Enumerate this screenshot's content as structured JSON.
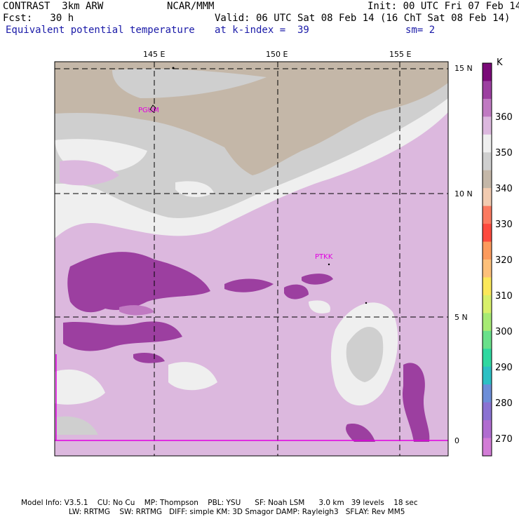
{
  "header": {
    "model": "CONTRAST  3km ARW",
    "center": "NCAR/MMM",
    "init": "Init: 00 UTC Fri 07 Feb 14",
    "fcst": "Fcst:   30 h",
    "valid": "Valid: 06 UTC Sat 08 Feb 14 (16 ChT Sat 08 Feb 14)",
    "field": "Equivalent potential temperature",
    "level": "at k-index =  39",
    "smooth": "sm= 2"
  },
  "map": {
    "lon_labels": [
      "145 E",
      "150 E",
      "155 E"
    ],
    "lat_labels": [
      "15 N",
      "10 N",
      "5 N",
      "0"
    ],
    "stations": [
      "PGUM",
      "PTKK"
    ]
  },
  "colorbar": {
    "unit": "K",
    "tick_labels": [
      "360",
      "350",
      "340",
      "330",
      "320",
      "310",
      "300",
      "290",
      "280",
      "270"
    ],
    "colors": [
      "#7a0a78",
      "#9c3fa0",
      "#c07ac2",
      "#dcb8de",
      "#efefef",
      "#cfcfcf",
      "#c4b7a8",
      "#f2cbb0",
      "#fb7a60",
      "#fd4a3e",
      "#fc9a5c",
      "#fdc07a",
      "#fbe85a",
      "#d8f06a",
      "#a6ea74",
      "#69e08a",
      "#2fd8a0",
      "#2cc0c4",
      "#6c8ed8",
      "#8a72d2",
      "#b06cd0",
      "#d27cd6"
    ]
  },
  "footer": {
    "line1": "Model Info: V3.5.1    CU: No Cu    MP: Thompson    PBL: YSU      SF: Noah LSM      3.0 km   39 levels    18 sec",
    "line2": "LW: RRTMG    SW: RRTMG   DIFF: simple KM: 3D Smagor DAMP: Rayleigh3   SFLAY: Rev MM5"
  }
}
